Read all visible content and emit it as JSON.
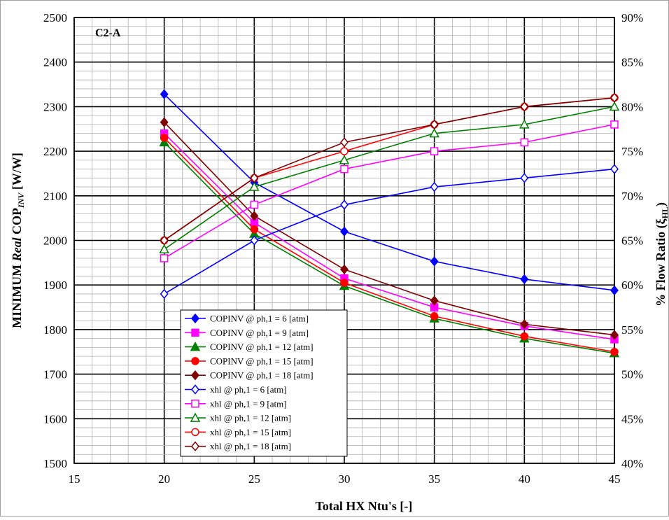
{
  "chart_data": {
    "type": "line",
    "panel_label": "C2-A",
    "xlabel": "Total HX Ntu's [-]",
    "ylabel_left": "MINIMUM Real COP_INV [W/W]",
    "ylabel_left_parts": {
      "pre": "MINIMUM ",
      "italic": "Real",
      "mid": " COP",
      "sub": "INV",
      "post": " [W/W]"
    },
    "ylabel_right": "% Flow Ratio (ξ_HL)",
    "ylabel_right_text": "% Flow Ratio (ξ",
    "ylabel_right_sub": "HL",
    "ylabel_right_close": ")",
    "xlim": [
      15,
      45
    ],
    "ylim_left": [
      1500,
      2500
    ],
    "ylim_right": [
      40,
      90
    ],
    "xticks": [
      "15",
      "20",
      "25",
      "30",
      "35",
      "40",
      "45"
    ],
    "xtick_values": [
      15,
      20,
      25,
      30,
      35,
      40,
      45
    ],
    "yticks_left": [
      "1500",
      "1600",
      "1700",
      "1800",
      "1900",
      "2000",
      "2100",
      "2200",
      "2300",
      "2400",
      "2500"
    ],
    "ytick_left_values": [
      1500,
      1600,
      1700,
      1800,
      1900,
      2000,
      2100,
      2200,
      2300,
      2400,
      2500
    ],
    "yticks_right": [
      "40%",
      "45%",
      "50%",
      "55%",
      "60%",
      "65%",
      "70%",
      "75%",
      "80%",
      "85%",
      "90%"
    ],
    "ytick_right_values": [
      40,
      45,
      50,
      55,
      60,
      65,
      70,
      75,
      80,
      85,
      90
    ],
    "grid": true,
    "legend_position": "lower-left",
    "x": [
      20,
      25,
      30,
      35,
      40,
      45
    ],
    "series": [
      {
        "name": "COPINV @ ph,1 = 6 [atm]",
        "axis": "left",
        "color": "#0000ff",
        "marker": "diamond",
        "filled": true,
        "values": [
          2328,
          2130,
          2020,
          1953,
          1913,
          1888
        ]
      },
      {
        "name": "COPINV @ ph,1 = 9 [atm]",
        "axis": "left",
        "color": "#ff00ff",
        "marker": "square",
        "filled": true,
        "values": [
          2240,
          2040,
          1915,
          1850,
          1808,
          1778
        ]
      },
      {
        "name": "COPINV @ ph,1 = 12 [atm]",
        "axis": "left",
        "color": "#008000",
        "marker": "triangle",
        "filled": true,
        "values": [
          2220,
          2015,
          1898,
          1825,
          1780,
          1747
        ]
      },
      {
        "name": "COPINV @ ph,1 = 15 [atm]",
        "axis": "left",
        "color": "#ff0000",
        "marker": "circle",
        "filled": true,
        "values": [
          2230,
          2025,
          1905,
          1830,
          1785,
          1750
        ]
      },
      {
        "name": "COPINV @ ph,1 = 18 [atm]",
        "axis": "left",
        "color": "#800000",
        "marker": "diamond",
        "filled": true,
        "values": [
          2265,
          2055,
          1935,
          1865,
          1812,
          1788
        ]
      },
      {
        "name": "xhl @ ph,1 =  6 [atm]",
        "axis": "right",
        "color": "#0000ff",
        "marker": "diamond",
        "filled": false,
        "values": [
          59,
          65,
          69,
          71,
          72,
          73
        ]
      },
      {
        "name": "xhl @ ph,1 =  9 [atm]",
        "axis": "right",
        "color": "#ff00ff",
        "marker": "square",
        "filled": false,
        "values": [
          63,
          69,
          73,
          75,
          76,
          78
        ]
      },
      {
        "name": "xhl @ ph,1 =  12 [atm]",
        "axis": "right",
        "color": "#008000",
        "marker": "triangle",
        "filled": false,
        "values": [
          64,
          71,
          74,
          77,
          78,
          80
        ]
      },
      {
        "name": "xhl @ ph,1 =  15 [atm]",
        "axis": "right",
        "color": "#ff0000",
        "marker": "circle",
        "filled": false,
        "values": [
          65,
          72,
          75,
          78,
          80,
          81
        ]
      },
      {
        "name": "xhl @ ph,1 =  18 [atm]",
        "axis": "right",
        "color": "#800000",
        "marker": "diamond",
        "filled": false,
        "values": [
          65,
          72,
          76,
          78,
          80,
          81
        ]
      }
    ]
  }
}
